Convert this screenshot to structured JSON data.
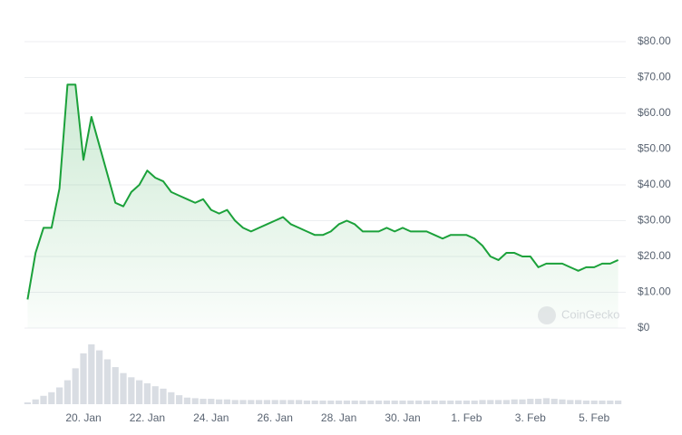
{
  "chart_data": {
    "type": "line",
    "watermark": "CoinGecko",
    "categories": [
      null,
      null,
      null,
      null,
      null,
      null,
      null,
      "20. Jan",
      null,
      null,
      null,
      null,
      null,
      null,
      null,
      "22. Jan",
      null,
      null,
      null,
      null,
      null,
      null,
      null,
      "24. Jan",
      null,
      null,
      null,
      null,
      null,
      null,
      null,
      "26. Jan",
      null,
      null,
      null,
      null,
      null,
      null,
      null,
      "28. Jan",
      null,
      null,
      null,
      null,
      null,
      null,
      null,
      "30. Jan",
      null,
      null,
      null,
      null,
      null,
      null,
      null,
      "1. Feb",
      null,
      null,
      null,
      null,
      null,
      null,
      null,
      "3. Feb",
      null,
      null,
      null,
      null,
      null,
      null,
      null,
      "5. Feb",
      null,
      null,
      null
    ],
    "series": [
      {
        "color": "#1ba13a",
        "values": [
          8,
          21,
          28,
          28,
          39,
          68,
          68,
          47,
          59,
          51,
          43,
          35,
          34,
          38,
          40,
          44,
          42,
          41,
          38,
          37,
          36,
          35,
          36,
          33,
          32,
          33,
          30,
          28,
          27,
          28,
          29,
          30,
          31,
          29,
          28,
          27,
          26,
          26,
          27,
          29,
          30,
          29,
          27,
          27,
          27,
          28,
          27,
          28,
          27,
          27,
          27,
          26,
          25,
          26,
          26,
          26,
          25,
          23,
          20,
          19,
          21,
          21,
          20,
          20,
          17,
          18,
          18,
          18,
          17,
          16,
          17,
          17,
          18,
          18,
          19
        ]
      },
      {
        "color": "#d9dde3",
        "axis": "y2",
        "values": [
          3,
          8,
          14,
          20,
          28,
          40,
          60,
          85,
          100,
          90,
          75,
          62,
          52,
          45,
          40,
          35,
          30,
          26,
          20,
          15,
          11,
          10,
          9,
          9,
          8,
          8,
          7,
          7,
          7,
          7,
          7,
          7,
          7,
          7,
          7,
          6,
          6,
          6,
          6,
          6,
          6,
          6,
          6,
          6,
          6,
          6,
          6,
          6,
          6,
          6,
          6,
          6,
          6,
          6,
          6,
          6,
          6,
          7,
          7,
          7,
          7,
          8,
          8,
          9,
          9,
          10,
          9,
          8,
          7,
          7,
          6,
          6,
          6,
          6,
          6
        ]
      }
    ],
    "ylim": [
      0,
      80
    ],
    "yticks": [
      {
        "value": 0,
        "label": "$0"
      },
      {
        "value": 10,
        "label": "$10.00"
      },
      {
        "value": 20,
        "label": "$20.00"
      },
      {
        "value": 30,
        "label": "$30.00"
      },
      {
        "value": 40,
        "label": "$40.00"
      },
      {
        "value": 50,
        "label": "$50.00"
      },
      {
        "value": 60,
        "label": "$60.00"
      },
      {
        "value": 70,
        "label": "$70.00"
      },
      {
        "value": 80,
        "label": "$80.00"
      }
    ],
    "y2lim": [
      0,
      100
    ],
    "grid": true
  }
}
